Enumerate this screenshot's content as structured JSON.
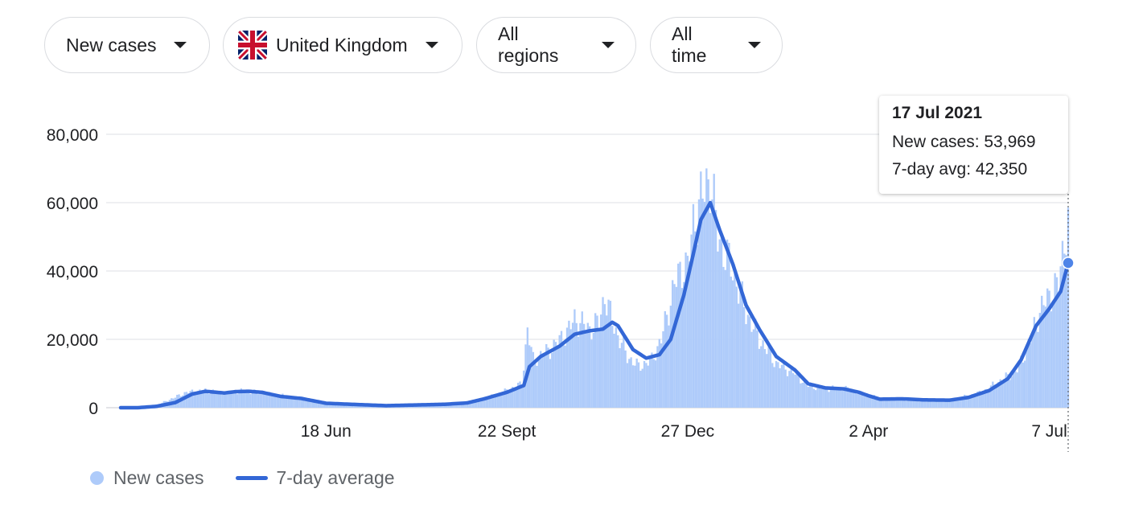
{
  "filters": {
    "metric": "New cases",
    "country": "United Kingdom",
    "country_flag": "uk-flag-icon",
    "region": "All regions",
    "period": "All time"
  },
  "tooltip": {
    "date": "17 Jul 2021",
    "new_cases_label": "New cases: 53,969",
    "avg_label": "7-day avg: 42,350"
  },
  "legend": {
    "bars": "New cases",
    "line": "7-day average"
  },
  "colors": {
    "bars": "#aecbfa",
    "line": "#3367d6",
    "gridline": "#e8eaed"
  },
  "chart_data": {
    "type": "bar",
    "title": "",
    "xlabel": "",
    "ylabel": "",
    "ylim": [
      0,
      80000
    ],
    "y_ticks": [
      0,
      20000,
      40000,
      60000,
      80000
    ],
    "y_tick_labels": [
      "0",
      "20,000",
      "40,000",
      "60,000",
      "80,000"
    ],
    "x_range": [
      "2020-03-01",
      "2021-07-17"
    ],
    "x_ticks": [
      {
        "date": "2020-06-18",
        "label": "18 Jun"
      },
      {
        "date": "2020-09-22",
        "label": "22 Sept"
      },
      {
        "date": "2020-12-27",
        "label": "27 Dec"
      },
      {
        "date": "2021-04-02",
        "label": "2 Apr"
      },
      {
        "date": "2021-07-07",
        "label": "7 Jul"
      }
    ],
    "grid": true,
    "legend_position": "bottom-left",
    "series": [
      {
        "name": "New cases",
        "type": "bar",
        "points": [
          [
            "2020-03-01",
            0
          ],
          [
            "2020-03-20",
            700
          ],
          [
            "2020-04-05",
            4500
          ],
          [
            "2020-04-15",
            5000
          ],
          [
            "2020-04-25",
            4300
          ],
          [
            "2020-05-05",
            4900
          ],
          [
            "2020-05-20",
            4000
          ],
          [
            "2020-06-01",
            3000
          ],
          [
            "2020-06-18",
            1200
          ],
          [
            "2020-07-05",
            900
          ],
          [
            "2020-07-25",
            700
          ],
          [
            "2020-08-15",
            1000
          ],
          [
            "2020-09-01",
            1400
          ],
          [
            "2020-09-10",
            2500
          ],
          [
            "2020-09-22",
            5000
          ],
          [
            "2020-09-30",
            7000
          ],
          [
            "2020-10-03",
            23000
          ],
          [
            "2020-10-06",
            14000
          ],
          [
            "2020-10-15",
            17000
          ],
          [
            "2020-10-24",
            22000
          ],
          [
            "2020-10-28",
            26000
          ],
          [
            "2020-11-05",
            23000
          ],
          [
            "2020-11-10",
            25000
          ],
          [
            "2020-11-13",
            33000
          ],
          [
            "2020-11-17",
            25000
          ],
          [
            "2020-11-25",
            15000
          ],
          [
            "2020-12-01",
            12000
          ],
          [
            "2020-12-08",
            14000
          ],
          [
            "2020-12-13",
            20000
          ],
          [
            "2020-12-20",
            36000
          ],
          [
            "2020-12-25",
            42000
          ],
          [
            "2020-12-27",
            41000
          ],
          [
            "2020-12-30",
            54000
          ],
          [
            "2021-01-04",
            62000
          ],
          [
            "2021-01-08",
            68000
          ],
          [
            "2021-01-12",
            50000
          ],
          [
            "2021-01-20",
            40000
          ],
          [
            "2021-01-27",
            28000
          ],
          [
            "2021-02-03",
            20000
          ],
          [
            "2021-02-12",
            13000
          ],
          [
            "2021-02-22",
            10000
          ],
          [
            "2021-03-01",
            6500
          ],
          [
            "2021-03-10",
            5500
          ],
          [
            "2021-03-20",
            5700
          ],
          [
            "2021-04-02",
            3500
          ],
          [
            "2021-04-10",
            2600
          ],
          [
            "2021-04-25",
            2300
          ],
          [
            "2021-05-05",
            2000
          ],
          [
            "2021-05-15",
            2200
          ],
          [
            "2021-05-25",
            3500
          ],
          [
            "2021-06-01",
            4500
          ],
          [
            "2021-06-10",
            7500
          ],
          [
            "2021-06-20",
            11000
          ],
          [
            "2021-06-27",
            20000
          ],
          [
            "2021-07-01",
            27000
          ],
          [
            "2021-07-07",
            33000
          ],
          [
            "2021-07-12",
            36000
          ],
          [
            "2021-07-15",
            50000
          ],
          [
            "2021-07-17",
            53969
          ]
        ]
      },
      {
        "name": "7-day average",
        "type": "line",
        "points": [
          [
            "2020-03-01",
            0
          ],
          [
            "2020-03-10",
            0
          ],
          [
            "2020-03-20",
            400
          ],
          [
            "2020-03-30",
            1500
          ],
          [
            "2020-04-08",
            4000
          ],
          [
            "2020-04-15",
            4800
          ],
          [
            "2020-04-25",
            4300
          ],
          [
            "2020-05-01",
            4700
          ],
          [
            "2020-05-08",
            4800
          ],
          [
            "2020-05-15",
            4500
          ],
          [
            "2020-05-25",
            3300
          ],
          [
            "2020-06-05",
            2700
          ],
          [
            "2020-06-18",
            1300
          ],
          [
            "2020-07-01",
            1000
          ],
          [
            "2020-07-20",
            600
          ],
          [
            "2020-08-05",
            800
          ],
          [
            "2020-08-20",
            1000
          ],
          [
            "2020-09-01",
            1400
          ],
          [
            "2020-09-10",
            2600
          ],
          [
            "2020-09-22",
            4500
          ],
          [
            "2020-10-01",
            6500
          ],
          [
            "2020-10-04",
            12000
          ],
          [
            "2020-10-10",
            15000
          ],
          [
            "2020-10-20",
            18000
          ],
          [
            "2020-10-28",
            21500
          ],
          [
            "2020-11-05",
            22500
          ],
          [
            "2020-11-12",
            23000
          ],
          [
            "2020-11-17",
            25000
          ],
          [
            "2020-11-20",
            24000
          ],
          [
            "2020-11-28",
            17000
          ],
          [
            "2020-12-05",
            14500
          ],
          [
            "2020-12-12",
            15500
          ],
          [
            "2020-12-18",
            20000
          ],
          [
            "2020-12-25",
            33000
          ],
          [
            "2020-12-30",
            45000
          ],
          [
            "2021-01-03",
            55000
          ],
          [
            "2021-01-08",
            60000
          ],
          [
            "2021-01-13",
            52000
          ],
          [
            "2021-01-20",
            42000
          ],
          [
            "2021-01-27",
            30000
          ],
          [
            "2021-02-03",
            23000
          ],
          [
            "2021-02-12",
            15000
          ],
          [
            "2021-02-22",
            11000
          ],
          [
            "2021-03-01",
            7000
          ],
          [
            "2021-03-10",
            5800
          ],
          [
            "2021-03-20",
            5500
          ],
          [
            "2021-03-28",
            4500
          ],
          [
            "2021-04-02",
            3500
          ],
          [
            "2021-04-08",
            2500
          ],
          [
            "2021-04-20",
            2600
          ],
          [
            "2021-05-01",
            2300
          ],
          [
            "2021-05-15",
            2200
          ],
          [
            "2021-05-25",
            3000
          ],
          [
            "2021-06-05",
            5000
          ],
          [
            "2021-06-15",
            8500
          ],
          [
            "2021-06-22",
            14000
          ],
          [
            "2021-06-30",
            24000
          ],
          [
            "2021-07-07",
            29000
          ],
          [
            "2021-07-13",
            34000
          ],
          [
            "2021-07-17",
            42350
          ]
        ]
      }
    ],
    "highlight": {
      "date": "2021-07-17",
      "new_cases": 53969,
      "avg": 42350
    }
  }
}
